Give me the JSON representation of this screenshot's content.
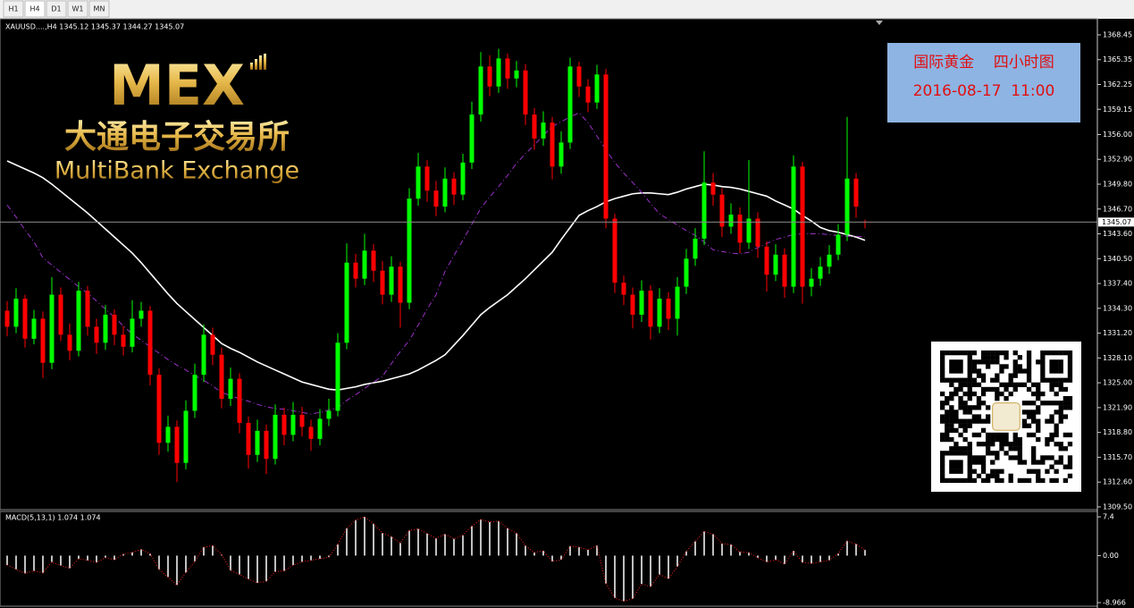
{
  "tabs": [
    "H1",
    "H4",
    "D1",
    "W1",
    "MN"
  ],
  "logo": {
    "mark": "MEX",
    "chinese": "大通电子交易所",
    "english": "MultiBank Exchange"
  },
  "info_box": {
    "line1": "国际黄金    四小时图",
    "line2": "2016-08-17  11:00"
  },
  "chart_data": [
    {
      "type": "candlestick",
      "title": "XAUUSD....,H4  1345.12 1345.37 1344.27 1345.07",
      "up_color": "#00ff00",
      "down_color": "#ff0000",
      "open": [
        1334.0,
        1332.0,
        1335.5,
        1330.5,
        1333.0,
        1327.5,
        1336.0,
        1331.0,
        1329.0,
        1336.5,
        1332.0,
        1330.0,
        1333.5,
        1331.0,
        1329.5,
        1333.0,
        1334.0,
        1326.0,
        1317.5,
        1319.5,
        1315.0,
        1321.5,
        1326.0,
        1331.0,
        1328.5,
        1323.0,
        1325.5,
        1320.0,
        1316.0,
        1319.0,
        1315.5,
        1321.0,
        1318.5,
        1321.0,
        1319.5,
        1318.0,
        1320.5,
        1321.5,
        1330.0,
        1340.0,
        1338.0,
        1341.5,
        1339.0,
        1336.0,
        1339.5,
        1335.0,
        1348.0,
        1352.0,
        1349.0,
        1347.0,
        1350.5,
        1348.5,
        1352.5,
        1358.5,
        1364.5,
        1362.0,
        1365.5,
        1363.0,
        1364.0,
        1358.5,
        1355.5,
        1357.5,
        1352.0,
        1355.0,
        1364.5,
        1362.0,
        1360.0,
        1363.5,
        1345.5,
        1337.5,
        1336.0,
        1333.5,
        1336.5,
        1332.0,
        1335.5,
        1333.0,
        1337.0,
        1340.5,
        1343.0,
        1350.0,
        1348.5,
        1344.5,
        1346.0,
        1342.5,
        1345.5,
        1342.0,
        1338.5,
        1341.0,
        1337.0,
        1352.0,
        1337.0,
        1338.0,
        1339.5,
        1341.0,
        1343.5,
        1350.5,
        1345.12
      ],
      "high": [
        1335.2,
        1336.8,
        1336.0,
        1334.1,
        1333.9,
        1338.2,
        1336.9,
        1332.4,
        1337.6,
        1337.1,
        1333.0,
        1334.7,
        1334.2,
        1332.1,
        1335.3,
        1335.1,
        1334.6,
        1326.8,
        1320.9,
        1320.3,
        1322.8,
        1327.4,
        1332.3,
        1331.9,
        1329.4,
        1326.9,
        1326.2,
        1320.8,
        1320.4,
        1319.8,
        1322.3,
        1321.9,
        1322.6,
        1322.0,
        1320.4,
        1321.7,
        1323.0,
        1331.2,
        1342.4,
        1341.1,
        1343.6,
        1342.3,
        1340.2,
        1340.8,
        1340.1,
        1349.3,
        1353.7,
        1352.8,
        1350.2,
        1351.9,
        1351.3,
        1353.6,
        1360.1,
        1366.3,
        1365.9,
        1366.7,
        1366.1,
        1365.2,
        1364.8,
        1359.3,
        1358.9,
        1358.2,
        1356.4,
        1365.6,
        1365.1,
        1362.9,
        1364.7,
        1364.2,
        1346.1,
        1338.4,
        1336.9,
        1337.8,
        1337.2,
        1336.8,
        1336.3,
        1338.2,
        1341.7,
        1344.3,
        1353.9,
        1351.2,
        1349.3,
        1347.4,
        1346.9,
        1352.8,
        1346.3,
        1342.7,
        1342.3,
        1341.8,
        1353.4,
        1352.6,
        1339.3,
        1340.7,
        1342.2,
        1344.8,
        1358.2,
        1351.2,
        1345.37
      ],
      "low": [
        1330.8,
        1331.2,
        1329.4,
        1329.8,
        1325.6,
        1326.7,
        1330.2,
        1327.8,
        1328.3,
        1330.9,
        1328.6,
        1329.1,
        1329.7,
        1328.4,
        1328.8,
        1332.0,
        1324.7,
        1316.0,
        1316.4,
        1312.6,
        1314.2,
        1320.6,
        1325.1,
        1327.2,
        1321.8,
        1322.1,
        1318.7,
        1314.3,
        1315.1,
        1313.6,
        1314.8,
        1317.2,
        1317.7,
        1318.3,
        1316.5,
        1317.2,
        1319.6,
        1320.8,
        1329.2,
        1336.9,
        1337.2,
        1337.6,
        1334.8,
        1335.1,
        1331.9,
        1334.2,
        1347.1,
        1347.6,
        1345.8,
        1346.3,
        1347.2,
        1347.8,
        1351.7,
        1357.6,
        1360.8,
        1361.2,
        1361.7,
        1361.9,
        1357.2,
        1354.1,
        1354.6,
        1350.4,
        1351.1,
        1354.2,
        1360.7,
        1358.8,
        1359.2,
        1344.3,
        1336.2,
        1334.7,
        1331.8,
        1332.6,
        1330.4,
        1331.2,
        1331.6,
        1330.9,
        1336.1,
        1339.6,
        1342.2,
        1347.1,
        1343.2,
        1343.6,
        1341.2,
        1341.7,
        1340.6,
        1336.4,
        1337.7,
        1335.6,
        1336.2,
        1334.9,
        1335.8,
        1337.1,
        1338.6,
        1340.3,
        1342.7,
        1345.6,
        1344.27
      ],
      "close": [
        1332.0,
        1335.5,
        1330.5,
        1333.0,
        1327.5,
        1336.0,
        1331.0,
        1329.0,
        1336.5,
        1332.0,
        1330.0,
        1333.5,
        1331.0,
        1329.5,
        1333.0,
        1334.0,
        1326.0,
        1317.5,
        1319.5,
        1315.0,
        1321.5,
        1326.0,
        1331.0,
        1328.5,
        1323.0,
        1325.5,
        1320.0,
        1316.0,
        1319.0,
        1315.5,
        1321.0,
        1318.5,
        1321.0,
        1319.5,
        1318.0,
        1320.5,
        1321.5,
        1330.0,
        1340.0,
        1338.0,
        1341.5,
        1339.0,
        1336.0,
        1339.5,
        1335.0,
        1348.0,
        1352.0,
        1349.0,
        1347.0,
        1350.5,
        1348.5,
        1352.5,
        1358.5,
        1364.5,
        1362.0,
        1365.5,
        1363.0,
        1364.0,
        1358.5,
        1355.5,
        1357.5,
        1352.0,
        1355.0,
        1364.5,
        1362.0,
        1360.0,
        1363.5,
        1345.5,
        1337.5,
        1336.0,
        1333.5,
        1336.5,
        1332.0,
        1335.5,
        1333.0,
        1337.0,
        1340.5,
        1343.0,
        1350.0,
        1348.5,
        1344.5,
        1346.0,
        1342.5,
        1345.5,
        1342.0,
        1338.5,
        1341.0,
        1337.0,
        1352.0,
        1337.0,
        1338.0,
        1339.5,
        1341.0,
        1343.5,
        1350.5,
        1347.0,
        1345.07
      ],
      "overlays": [
        {
          "color": "#ffffff",
          "dashed": false,
          "values": [
            1352.7,
            1352.2,
            1351.7,
            1351.2,
            1350.6,
            1349.8,
            1348.9,
            1348.0,
            1347.1,
            1346.2,
            1345.2,
            1344.2,
            1343.2,
            1342.2,
            1341.2,
            1340.0,
            1338.7,
            1337.4,
            1336.1,
            1334.9,
            1333.9,
            1332.9,
            1331.9,
            1330.9,
            1329.9,
            1329.3,
            1328.8,
            1328.2,
            1327.6,
            1327.1,
            1326.6,
            1326.1,
            1325.6,
            1325.1,
            1324.8,
            1324.5,
            1324.2,
            1324.1,
            1324.3,
            1324.5,
            1324.8,
            1325.0,
            1325.2,
            1325.5,
            1325.8,
            1326.1,
            1326.6,
            1327.2,
            1327.8,
            1328.5,
            1329.7,
            1330.9,
            1332.2,
            1333.5,
            1334.4,
            1335.2,
            1336.0,
            1337.0,
            1338.0,
            1339.1,
            1340.2,
            1341.3,
            1342.9,
            1344.4,
            1345.9,
            1346.5,
            1347.0,
            1347.6,
            1348.0,
            1348.3,
            1348.6,
            1348.7,
            1348.7,
            1348.6,
            1348.5,
            1348.8,
            1349.2,
            1349.5,
            1349.8,
            1349.7,
            1349.5,
            1349.4,
            1349.2,
            1348.9,
            1348.6,
            1348.3,
            1347.7,
            1347.2,
            1346.7,
            1345.9,
            1345.2,
            1344.4,
            1344.0,
            1343.8,
            1343.5,
            1343.2,
            1342.8
          ]
        },
        {
          "color": "#9b30c8",
          "dashed": true,
          "values": [
            1347.2,
            1345.7,
            1344.1,
            1342.6,
            1340.6,
            1339.7,
            1338.8,
            1337.9,
            1337.0,
            1336.2,
            1335.2,
            1334.2,
            1333.2,
            1332.1,
            1331.1,
            1330.3,
            1329.5,
            1328.7,
            1327.9,
            1327.2,
            1326.6,
            1325.9,
            1325.3,
            1324.6,
            1323.8,
            1323.4,
            1323.0,
            1322.7,
            1322.3,
            1322.0,
            1321.8,
            1321.7,
            1321.5,
            1321.3,
            1321.1,
            1321.3,
            1321.6,
            1321.9,
            1322.8,
            1323.5,
            1324.3,
            1325.1,
            1325.8,
            1327.4,
            1328.9,
            1330.3,
            1332.2,
            1334.2,
            1336.0,
            1338.9,
            1340.9,
            1342.8,
            1344.8,
            1346.8,
            1348.2,
            1349.5,
            1350.9,
            1352.4,
            1353.6,
            1354.7,
            1355.9,
            1357.0,
            1357.6,
            1358.2,
            1358.7,
            1357.5,
            1355.8,
            1354.1,
            1352.5,
            1351.2,
            1350.0,
            1348.8,
            1347.4,
            1346.1,
            1345.4,
            1344.7,
            1344.0,
            1343.4,
            1342.6,
            1341.6,
            1341.4,
            1341.2,
            1341.1,
            1341.3,
            1341.9,
            1342.4,
            1342.9,
            1343.2,
            1343.5,
            1343.6,
            1343.6,
            1343.6,
            1343.5,
            1343.4,
            1343.3,
            1343.3,
            1343.2
          ]
        }
      ],
      "ylim": [
        1309.16,
        1370.12
      ],
      "yticks": [
        1368.45,
        1365.35,
        1362.25,
        1359.15,
        {
          "value": 1356,
          "label": "1356.00"
        },
        {
          "value": 1352.9,
          "label": "1352.90"
        },
        {
          "value": 1349.8,
          "label": "1349.80"
        },
        {
          "value": 1346.7,
          "label": "1346.70"
        },
        {
          "value": 1343.6,
          "label": "1343.60"
        },
        {
          "value": 1340.5,
          "label": "1340.50"
        },
        {
          "value": 1337.4,
          "label": "1337.40"
        },
        {
          "value": 1334.3,
          "label": "1334.30"
        },
        {
          "value": 1331.2,
          "label": "1331.20"
        },
        {
          "value": 1328.1,
          "label": "1328.10"
        },
        {
          "value": 1325,
          "label": "1325.00"
        },
        {
          "value": 1321.9,
          "label": "1321.90"
        },
        {
          "value": 1318.8,
          "label": "1318.80"
        },
        {
          "value": 1315.7,
          "label": "1315.70"
        },
        {
          "value": 1312.6,
          "label": "1312.60"
        },
        {
          "value": 1309.5,
          "label": "1309.50"
        }
      ]
    },
    {
      "type": "histogram",
      "title": "MACD(5,13,1) 1.074 1.074",
      "color": "#ffffff",
      "signal_color": "#ff2020",
      "values": [
        -1.8,
        -2.6,
        -3.4,
        -2.9,
        -3.3,
        -1.2,
        -1.9,
        -2.4,
        -0.6,
        -0.9,
        -1.3,
        -0.4,
        -0.8,
        0.3,
        0.6,
        1.2,
        0.4,
        -2.6,
        -4.1,
        -5.6,
        -3.2,
        -1.1,
        1.6,
        1.9,
        0.2,
        -2.8,
        -3.6,
        -4.5,
        -5.2,
        -4.9,
        -3.1,
        -2.9,
        -1.8,
        -1.2,
        -0.9,
        -0.6,
        -0.3,
        2.1,
        5.2,
        6.8,
        7.4,
        6.1,
        4.3,
        3.6,
        2.4,
        4.8,
        5.1,
        4.2,
        3.3,
        4.1,
        3.2,
        3.9,
        5.6,
        6.9,
        6.4,
        6.6,
        5.2,
        4.3,
        1.9,
        0.6,
        0.9,
        -1.1,
        -0.8,
        1.8,
        1.6,
        1.1,
        1.9,
        -5.3,
        -8.1,
        -8.7,
        -8.2,
        -5.4,
        -5.9,
        -3.6,
        -4.4,
        -2.1,
        0.8,
        2.7,
        4.6,
        4.1,
        2.3,
        2.1,
        0.7,
        0.6,
        -0.4,
        -1.2,
        -0.8,
        -1.6,
        0.9,
        -1.3,
        -1.5,
        -1.2,
        -0.9,
        0.4,
        2.8,
        2.2,
        1.074
      ],
      "ylim": [
        -9.65,
        8.43
      ],
      "yticks": [
        7.4,
        {
          "value": 0,
          "label": "0.00"
        },
        -8.966
      ]
    }
  ]
}
